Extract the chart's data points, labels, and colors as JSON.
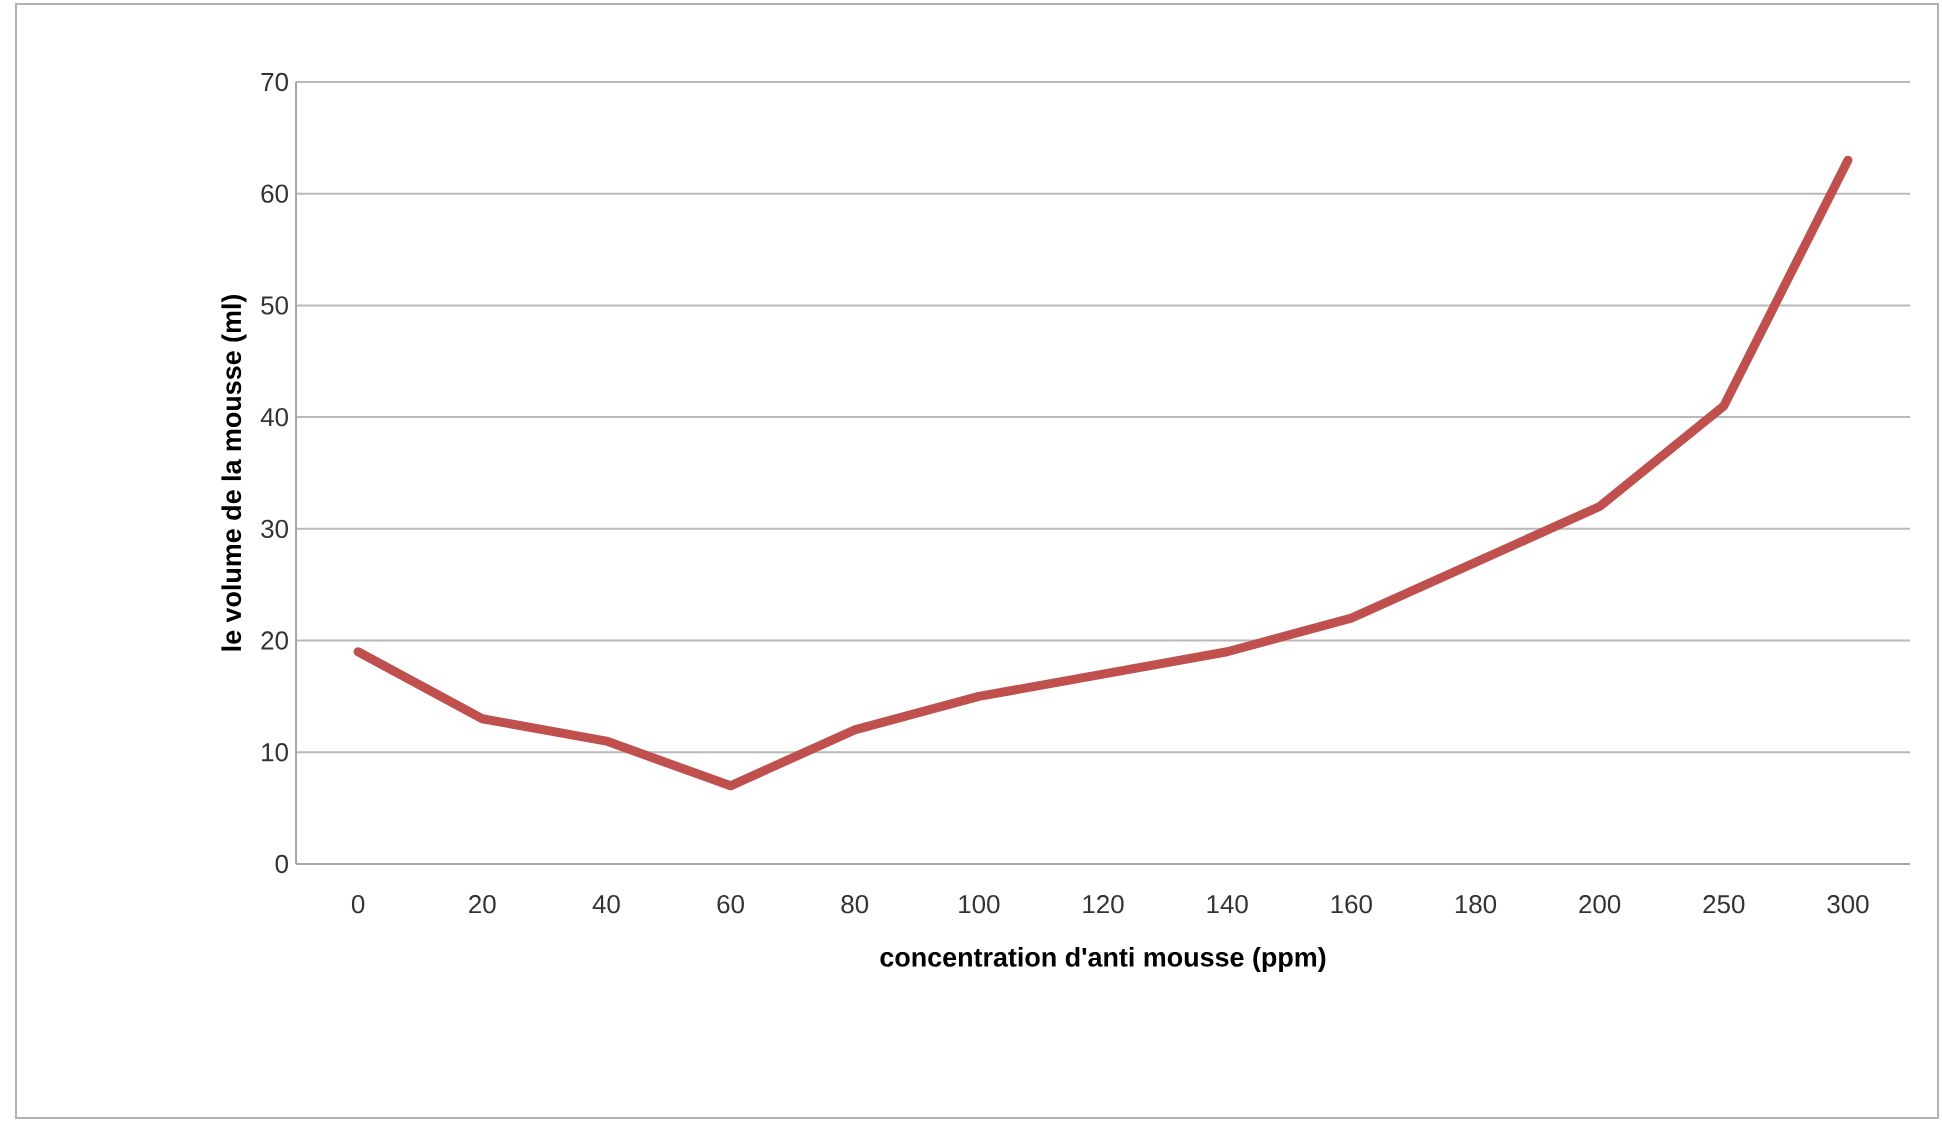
{
  "chart_data": {
    "type": "line",
    "xlabel": "concentration d'anti mousse (ppm)",
    "ylabel": "le volume de la mousse (ml)",
    "categories": [
      "0",
      "20",
      "40",
      "60",
      "80",
      "100",
      "120",
      "140",
      "160",
      "180",
      "200",
      "250",
      "300"
    ],
    "series": [
      {
        "color": "#c0504d",
        "values": [
          19,
          13,
          11,
          7,
          12,
          15,
          17,
          19,
          22,
          27,
          32,
          41,
          63
        ]
      }
    ],
    "ylim": [
      0,
      70
    ],
    "yticks": [
      0,
      10,
      20,
      30,
      40,
      50,
      60,
      70
    ],
    "grid": "y",
    "legend": false,
    "marker": "none",
    "line_style": "solid"
  }
}
